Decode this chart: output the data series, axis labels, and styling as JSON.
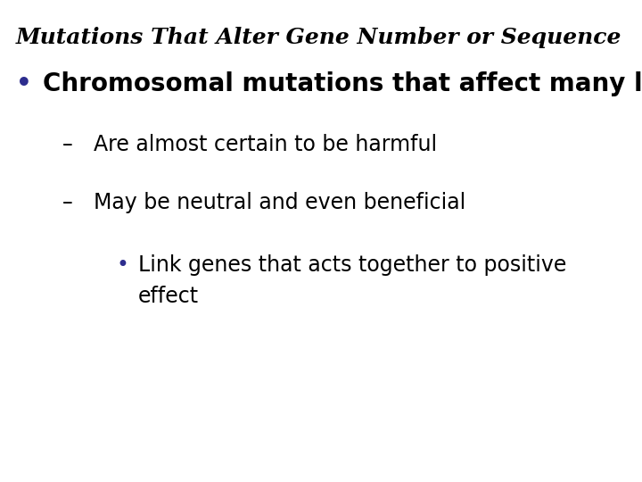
{
  "title": "Mutations That Alter Gene Number or Sequence",
  "title_color": "#000000",
  "title_fontsize": 18,
  "background_color": "#ffffff",
  "bullet1_text": "Chromosomal mutations that affect many loci",
  "bullet1_color": "#000000",
  "bullet1_bullet_color": "#2d2d8e",
  "bullet1_fontsize": 20,
  "sub1_text": "Are almost certain to be harmful",
  "sub2_text": "May be neutral and even beneficial",
  "sub_fontsize": 17,
  "sub_color": "#000000",
  "sub_dash": "–",
  "sub3_text": "Link genes that acts together to positive\neffect",
  "sub3_fontsize": 17,
  "sub3_color": "#000000",
  "sub3_bullet_color": "#2d2d8e"
}
